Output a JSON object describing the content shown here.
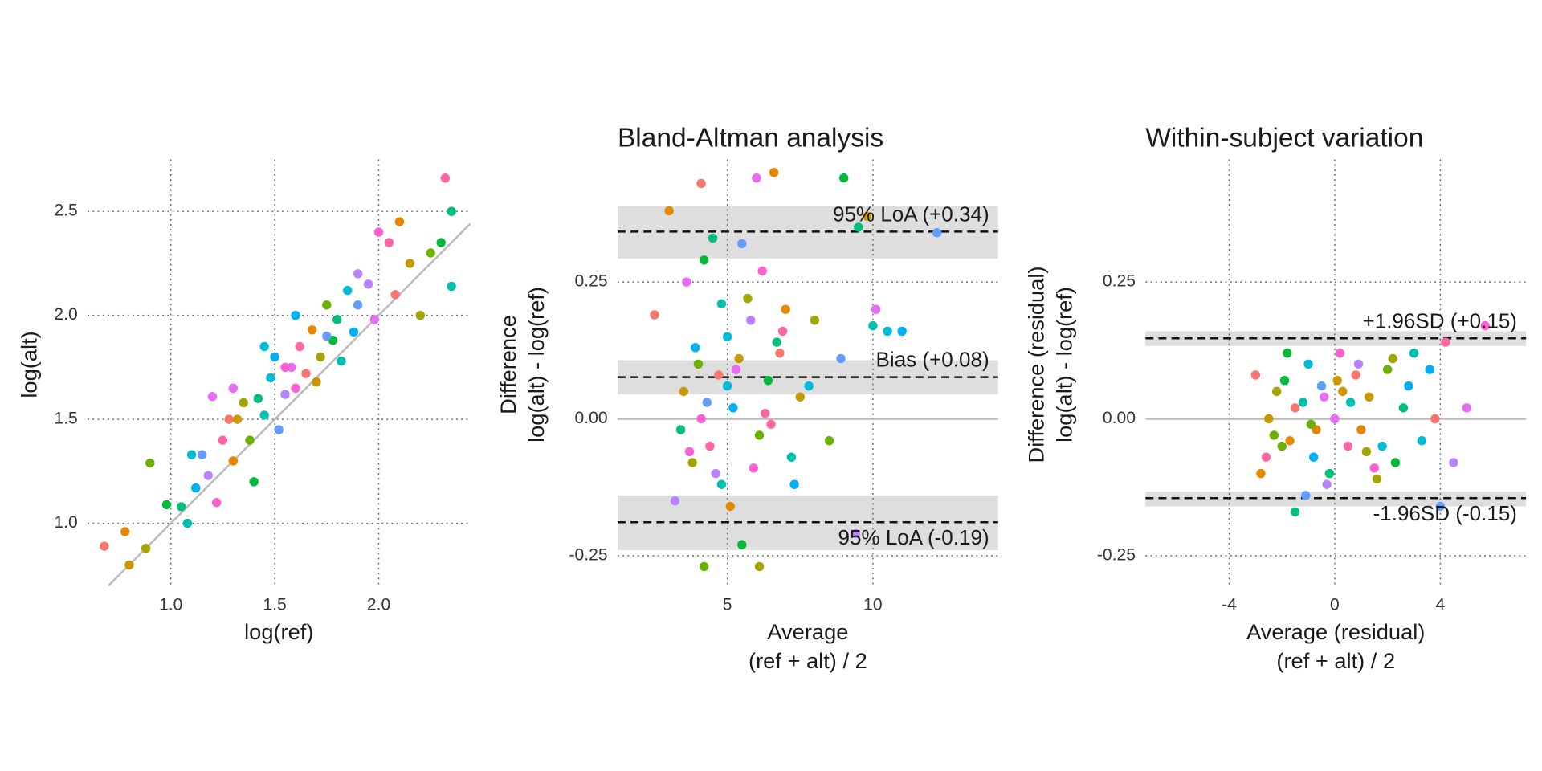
{
  "chart_data": [
    {
      "type": "scatter",
      "xlabel": [
        "log(ref)"
      ],
      "ylabel": [
        "log(alt)"
      ],
      "xlim": [
        0.6,
        2.44
      ],
      "ylim": [
        0.7,
        2.75
      ],
      "xticks": [
        {
          "value": 1,
          "label": "1.0"
        },
        1.5,
        {
          "value": 2,
          "label": "2.0"
        }
      ],
      "yticks": [
        {
          "value": 1,
          "label": "1.0"
        },
        1.5,
        {
          "value": 2,
          "label": "2.0"
        },
        2.5
      ],
      "grid": true,
      "identity_line": true,
      "colors": [
        "#F8766D",
        "#E58700",
        "#C99800",
        "#A3A500",
        "#6BB100",
        "#00BA38",
        "#00BF7D",
        "#00C0AF",
        "#00BCD8",
        "#00B0F6",
        "#619CFF",
        "#B983FF",
        "#E76BF3",
        "#FD61D1",
        "#FF67A4"
      ],
      "x": [
        0.68,
        0.78,
        0.8,
        0.88,
        0.9,
        0.98,
        1.05,
        1.08,
        1.1,
        1.12,
        1.15,
        1.18,
        1.2,
        1.22,
        1.25,
        1.28,
        1.3,
        1.32,
        1.35,
        1.38,
        1.4,
        1.42,
        1.45,
        1.48,
        1.5,
        1.52,
        1.55,
        1.58,
        1.6,
        1.62,
        1.65,
        1.68,
        1.7,
        1.72,
        1.75,
        1.78,
        1.8,
        1.82,
        1.85,
        1.88,
        1.9,
        1.95,
        1.98,
        2.0,
        2.05,
        2.08,
        2.1,
        2.15,
        2.2,
        2.25,
        2.3,
        2.35,
        2.35,
        1.45,
        1.6,
        1.75,
        1.9,
        1.3,
        1.55,
        2.32
      ],
      "y": [
        0.89,
        0.96,
        0.8,
        0.88,
        1.29,
        1.09,
        1.08,
        1.0,
        1.33,
        1.17,
        1.33,
        1.23,
        1.61,
        1.1,
        1.4,
        1.5,
        1.3,
        1.5,
        1.58,
        1.4,
        1.2,
        1.6,
        1.52,
        1.7,
        1.8,
        1.45,
        1.62,
        1.75,
        1.65,
        1.85,
        1.72,
        1.93,
        1.68,
        1.8,
        2.05,
        1.88,
        1.98,
        1.78,
        2.12,
        1.92,
        2.05,
        2.15,
        1.98,
        2.4,
        2.35,
        2.1,
        2.45,
        2.25,
        2.0,
        2.3,
        2.35,
        2.5,
        2.14,
        1.85,
        2.0,
        1.9,
        2.2,
        1.65,
        1.75,
        2.66
      ]
    },
    {
      "type": "scatter",
      "title": "Bland-Altman analysis",
      "xlabel": [
        "Average",
        "(ref + alt) / 2"
      ],
      "ylabel": [
        "Difference",
        "log(alt) - log(ref)"
      ],
      "xlim": [
        1.23,
        14.3
      ],
      "ylim": [
        -0.305,
        0.474
      ],
      "xticks": [
        5,
        10
      ],
      "yticks": [
        -0.25,
        {
          "value": 0,
          "label": "0.00"
        },
        0.25
      ],
      "grid": true,
      "zero_line": true,
      "colors": [
        "#F8766D",
        "#E58700",
        "#C99800",
        "#A3A500",
        "#6BB100",
        "#00BA38",
        "#00BF7D",
        "#00C0AF",
        "#00BCD8",
        "#00B0F6",
        "#619CFF",
        "#B983FF",
        "#E76BF3",
        "#FD61D1",
        "#FF67A4"
      ],
      "hlines": [
        {
          "value": 0.342,
          "label": "95% LoA (+0.34)",
          "band": [
            0.293,
            0.389
          ],
          "label_side": "above"
        },
        {
          "value": 0.076,
          "label": "Bias (+0.08)",
          "band": [
            0.045,
            0.107
          ],
          "label_side": "above"
        },
        {
          "value": -0.189,
          "label": "95% LoA (-0.19)",
          "band": [
            -0.24,
            -0.14
          ],
          "label_side": "below"
        }
      ],
      "x": [
        2.5,
        3.0,
        3.5,
        3.8,
        4.0,
        4.2,
        4.5,
        4.8,
        5.0,
        5.2,
        5.5,
        5.8,
        6.0,
        6.2,
        6.5,
        6.8,
        7.0,
        7.5,
        8.0,
        8.5,
        9.0,
        9.5,
        10.0,
        10.5,
        11.0,
        12.2,
        3.2,
        3.6,
        4.1,
        4.4,
        4.7,
        5.1,
        5.4,
        5.7,
        6.1,
        6.4,
        6.7,
        7.2,
        7.8,
        3.9,
        4.3,
        4.6,
        5.3,
        5.9,
        6.3,
        4.1,
        6.6,
        9.8,
        6.1,
        4.2,
        5.5,
        3.4,
        4.8,
        5.0,
        7.3,
        8.9,
        9.4,
        10.1,
        3.7,
        6.9
      ],
      "y": [
        0.19,
        0.38,
        0.05,
        -0.08,
        0.1,
        0.29,
        0.33,
        -0.12,
        0.15,
        0.02,
        0.32,
        0.18,
        0.44,
        0.27,
        -0.01,
        0.12,
        0.2,
        0.04,
        0.18,
        -0.04,
        0.44,
        0.35,
        0.17,
        0.16,
        0.16,
        0.34,
        -0.15,
        0.25,
        0.0,
        -0.05,
        0.08,
        -0.16,
        0.11,
        0.22,
        -0.03,
        0.07,
        0.14,
        -0.07,
        0.06,
        0.13,
        0.03,
        -0.1,
        0.09,
        -0.09,
        0.01,
        0.43,
        0.45,
        0.37,
        -0.27,
        -0.27,
        -0.23,
        -0.02,
        0.21,
        0.06,
        -0.12,
        0.11,
        -0.21,
        0.2,
        -0.06,
        0.16
      ]
    },
    {
      "type": "scatter",
      "title": "Within-subject variation",
      "xlabel": [
        "Average (residual)",
        "(ref + alt) / 2"
      ],
      "ylabel": [
        "Difference (residual)",
        "log(alt) - log(ref)"
      ],
      "xlim": [
        -7.17,
        7.25
      ],
      "ylim": [
        -0.305,
        0.474
      ],
      "xticks": [
        -4,
        0,
        4
      ],
      "yticks": [
        -0.25,
        {
          "value": 0,
          "label": "0.00"
        },
        0.25
      ],
      "grid": true,
      "zero_line": true,
      "colors": [
        "#F8766D",
        "#E58700",
        "#C99800",
        "#A3A500",
        "#6BB100",
        "#00BA38",
        "#00BF7D",
        "#00C0AF",
        "#00BCD8",
        "#00B0F6",
        "#619CFF",
        "#B983FF",
        "#E76BF3",
        "#FD61D1",
        "#FF67A4"
      ],
      "hlines": [
        {
          "value": 0.147,
          "label": "+1.96SD (+0.15)",
          "band": [
            0.133,
            0.16
          ],
          "label_side": "above"
        },
        {
          "value": -0.145,
          "label": "-1.96SD (-0.15)",
          "band": [
            -0.16,
            -0.133
          ],
          "label_side": "below"
        }
      ],
      "x": [
        -3,
        -2.8,
        -2.5,
        -2.2,
        -2,
        -1.8,
        -1.5,
        -1.2,
        -1,
        -0.8,
        -0.5,
        -0.3,
        0,
        0.2,
        0.5,
        0.8,
        1,
        1.3,
        1.6,
        2,
        2.3,
        2.6,
        3,
        3.3,
        3.6,
        4,
        4.5,
        5,
        5.7,
        4.2,
        -1.5,
        -0.7,
        0.3,
        1.2,
        -2.3,
        -1.9,
        -0.2,
        0.6,
        1.8,
        2.8,
        -1.1,
        0.9,
        -0.4,
        1.5,
        -2.6,
        3.8,
        -1.7,
        0.1,
        2.2,
        -0.9
      ],
      "y": [
        0.08,
        -0.1,
        0.0,
        0.05,
        -0.05,
        0.12,
        -0.17,
        0.03,
        0.1,
        -0.07,
        0.06,
        -0.12,
        0.0,
        0.12,
        -0.05,
        0.08,
        -0.02,
        0.04,
        -0.11,
        0.09,
        -0.08,
        0.02,
        0.12,
        -0.04,
        0.09,
        -0.16,
        -0.08,
        0.02,
        0.17,
        0.14,
        0.02,
        -0.02,
        0.05,
        -0.06,
        -0.03,
        0.07,
        -0.1,
        0.03,
        -0.05,
        0.06,
        -0.14,
        0.1,
        0.04,
        -0.09,
        -0.07,
        0.0,
        -0.04,
        0.07,
        0.11,
        -0.01
      ]
    }
  ]
}
